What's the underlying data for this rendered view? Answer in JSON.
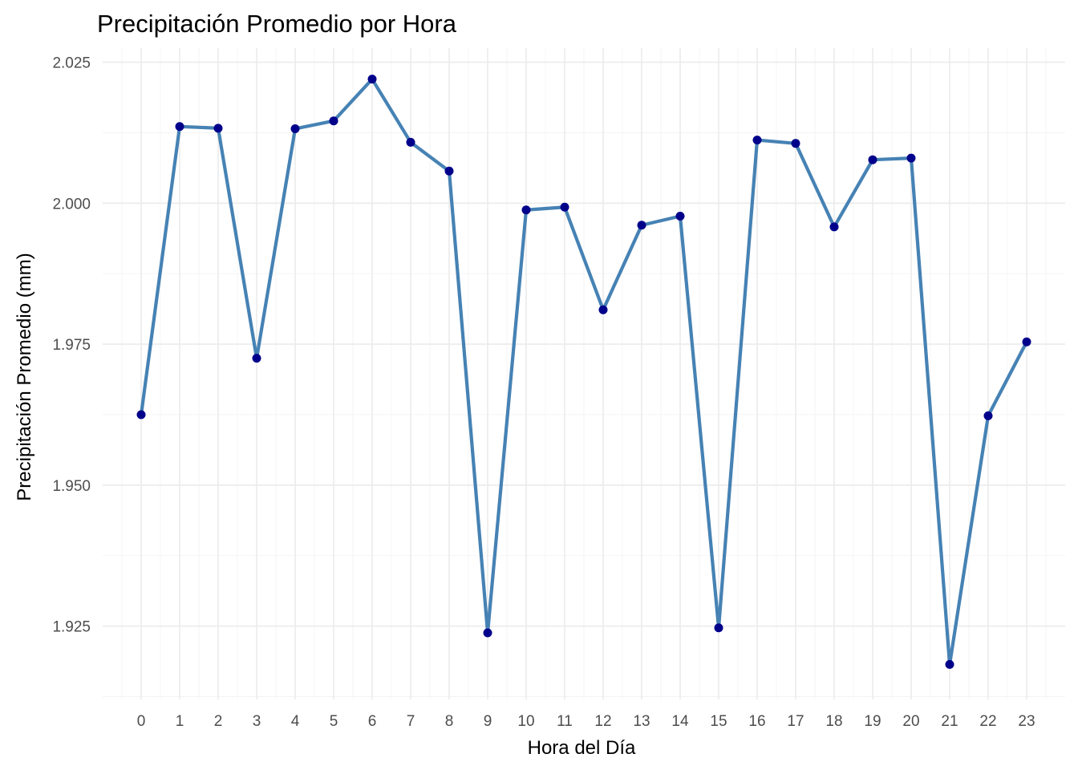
{
  "chart_data": {
    "type": "line",
    "title": "Precipitación Promedio por Hora",
    "xlabel": "Hora del Día",
    "ylabel": "Precipitación Promedio (mm)",
    "x": [
      0,
      1,
      2,
      3,
      4,
      5,
      6,
      7,
      8,
      9,
      10,
      11,
      12,
      13,
      14,
      15,
      16,
      17,
      18,
      19,
      20,
      21,
      22,
      23
    ],
    "series": [
      {
        "values": [
          1.9625,
          2.0136,
          2.0133,
          1.9725,
          2.0132,
          2.0146,
          2.022,
          2.0108,
          2.0057,
          1.9238,
          1.9988,
          1.9993,
          1.9811,
          1.9961,
          1.9977,
          1.9247,
          2.0112,
          2.0106,
          1.9958,
          2.0077,
          2.008,
          1.9182,
          1.9623,
          1.9754
        ]
      }
    ],
    "xlim": [
      -1,
      24
    ],
    "ylim": [
      1.912,
      2.0275
    ],
    "y_ticks": [
      1.925,
      1.95,
      1.975,
      2.0,
      2.025
    ],
    "y_tick_labels": [
      "1.925",
      "1.950",
      "1.975",
      "2.000",
      "2.025"
    ],
    "grid": true,
    "line_color": "#4682b4",
    "point_color": "#00008b"
  }
}
